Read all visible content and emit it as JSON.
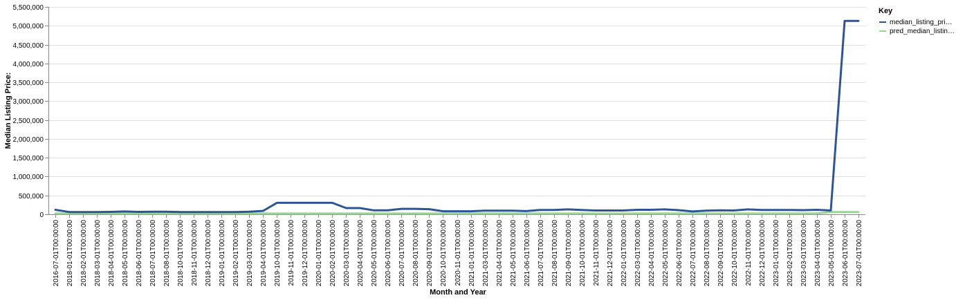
{
  "chart_data": {
    "type": "line",
    "xlabel": "Month and Year",
    "ylabel": "Median Listing Price:",
    "ylim": [
      0,
      5500000
    ],
    "y_ticks": [
      0,
      500000,
      1000000,
      1500000,
      2000000,
      2500000,
      3000000,
      3500000,
      4000000,
      4500000,
      5000000,
      5500000
    ],
    "y_tick_labels": [
      "0",
      "500,000",
      "1,000,000",
      "1,500,000",
      "2,000,000",
      "2,500,000",
      "3,000,000",
      "3,500,000",
      "4,000,000",
      "4,500,000",
      "5,000,000",
      "5,500,000"
    ],
    "grid": true,
    "legend": {
      "title": "Key",
      "placement": "right",
      "entries": [
        "median_listing_pri…",
        "pred_median_listin…"
      ]
    },
    "categories": [
      "2016-07-01T00:00:00",
      "2018-01-01T00:00:00",
      "2018-02-01T00:00:00",
      "2018-03-01T00:00:00",
      "2018-04-01T00:00:00",
      "2018-05-01T00:00:00",
      "2018-06-01T00:00:00",
      "2018-07-01T00:00:00",
      "2018-08-01T00:00:00",
      "2018-10-01T00:00:00",
      "2018-11-01T00:00:00",
      "2018-12-01T00:00:00",
      "2019-01-01T00:00:00",
      "2019-02-01T00:00:00",
      "2019-03-01T00:00:00",
      "2019-04-01T00:00:00",
      "2019-10-01T00:00:00",
      "2019-11-01T00:00:00",
      "2019-12-01T00:00:00",
      "2020-01-01T00:00:00",
      "2020-02-01T00:00:00",
      "2020-03-01T00:00:00",
      "2020-04-01T00:00:00",
      "2020-05-01T00:00:00",
      "2020-06-01T00:00:00",
      "2020-07-01T00:00:00",
      "2020-08-01T00:00:00",
      "2020-09-01T00:00:00",
      "2020-10-01T00:00:00",
      "2020-11-01T00:00:00",
      "2021-01-01T00:00:00",
      "2021-03-01T00:00:00",
      "2021-04-01T00:00:00",
      "2021-05-01T00:00:00",
      "2021-06-01T00:00:00",
      "2021-07-01T00:00:00",
      "2021-08-01T00:00:00",
      "2021-09-01T00:00:00",
      "2021-10-01T00:00:00",
      "2021-11-01T00:00:00",
      "2021-12-01T00:00:00",
      "2022-01-01T00:00:00",
      "2022-03-01T00:00:00",
      "2022-04-01T00:00:00",
      "2022-05-01T00:00:00",
      "2022-06-01T00:00:00",
      "2022-07-01T00:00:00",
      "2022-08-01T00:00:00",
      "2022-09-01T00:00:00",
      "2022-10-01T00:00:00",
      "2022-11-01T00:00:00",
      "2022-12-01T00:00:00",
      "2023-01-01T00:00:00",
      "2023-02-01T00:00:00",
      "2023-03-01T00:00:00",
      "2023-04-01T00:00:00",
      "2023-05-01T00:00:00",
      "2023-06-01T00:00:00",
      "2023-07-01T00:00:00"
    ],
    "series": [
      {
        "name": "median_listing_pri…",
        "color": "#2d5596",
        "values": [
          120000,
          60000,
          60000,
          60000,
          65000,
          75000,
          65000,
          70000,
          70000,
          60000,
          60000,
          60000,
          60000,
          60000,
          70000,
          90000,
          305000,
          305000,
          305000,
          305000,
          305000,
          165000,
          165000,
          105000,
          105000,
          145000,
          145000,
          135000,
          80000,
          80000,
          80000,
          95000,
          95000,
          95000,
          85000,
          115000,
          115000,
          130000,
          115000,
          100000,
          100000,
          100000,
          120000,
          120000,
          130000,
          110000,
          75000,
          95000,
          105000,
          100000,
          130000,
          115000,
          115000,
          115000,
          110000,
          120000,
          100000,
          5130000,
          5130000
        ]
      },
      {
        "name": "pred_median_listin…",
        "color": "#98d594",
        "values": [
          20000,
          20000,
          20000,
          20000,
          20000,
          20000,
          20000,
          20000,
          20000,
          20000,
          20000,
          20000,
          20000,
          20000,
          20000,
          20000,
          20000,
          20000,
          20000,
          20000,
          20000,
          20000,
          20000,
          20000,
          20000,
          20000,
          20000,
          20000,
          20000,
          20000,
          20000,
          20000,
          20000,
          20000,
          20000,
          20000,
          20000,
          20000,
          20000,
          20000,
          20000,
          20000,
          20000,
          20000,
          20000,
          20000,
          20000,
          20000,
          20000,
          20000,
          20000,
          20000,
          20000,
          20000,
          20000,
          20000,
          60000,
          60000,
          60000
        ]
      }
    ]
  }
}
